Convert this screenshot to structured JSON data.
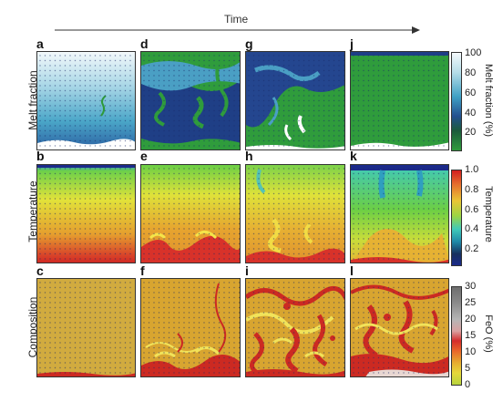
{
  "header": {
    "time_label": "Time"
  },
  "rows": [
    {
      "label": "Melt fraction",
      "panels": [
        "a",
        "d",
        "g",
        "j"
      ],
      "colorbar": {
        "title": "Melt fraction (%)",
        "ticks": [
          "100",
          "80",
          "60",
          "40",
          "20"
        ]
      }
    },
    {
      "label": "Temperature",
      "panels": [
        "b",
        "e",
        "h",
        "k"
      ],
      "colorbar": {
        "title": "Temperature",
        "ticks": [
          "1.0",
          "0.8",
          "0.6",
          "0.4",
          "0.2"
        ]
      }
    },
    {
      "label": "Composition",
      "panels": [
        "c",
        "f",
        "i",
        "l"
      ],
      "colorbar": {
        "title": "FeO (%)",
        "ticks": [
          "30",
          "25",
          "20",
          "15",
          "10",
          "5",
          "0"
        ]
      }
    }
  ],
  "colors": {
    "melt_high": "#f2f8fa",
    "melt_mid": "#3f9fc2",
    "melt_low": "#1f3f86",
    "melt_solid": "#2e9a3a",
    "temp_cold": "#1b2a8a",
    "temp_mid": "#3fc9b9",
    "temp_green": "#6bcf45",
    "temp_yellow": "#e8e23a",
    "temp_hot": "#d32222",
    "comp_low": "#cdb24a",
    "comp_mid": "#d9a22e",
    "comp_high": "#cc2222"
  }
}
